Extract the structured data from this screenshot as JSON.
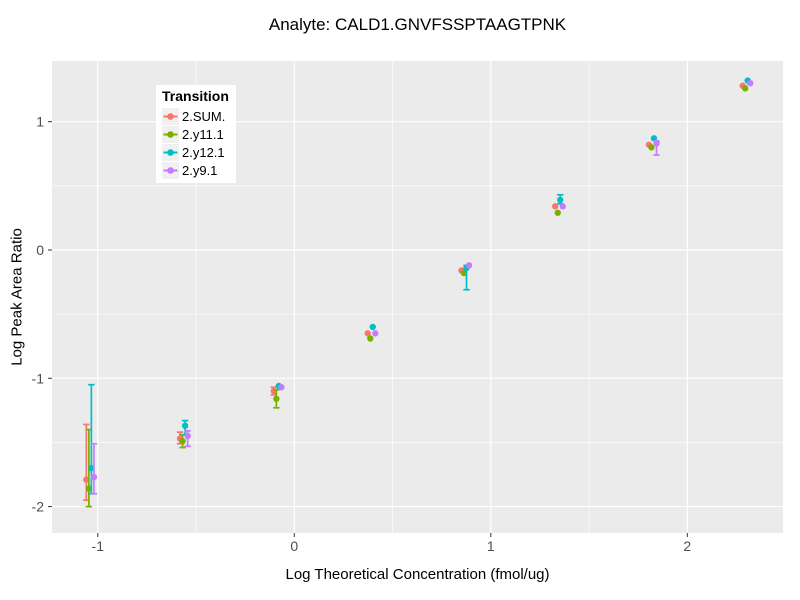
{
  "title": "Analyte: CALD1.GNVFSSPTAAGTPNK",
  "chart_data": {
    "type": "scatter",
    "variant": "pointrange-errorbar",
    "title": "Analyte: CALD1.GNVFSSPTAAGTPNK",
    "xlabel": "Log Theoretical Concentration (fmol/ug)",
    "ylabel": "Log Peak Area Ratio",
    "legend_title": "Transition",
    "legend_position": "inside-top-left",
    "grid": "on",
    "panel_bg": "#EBEBEB",
    "grid_color": "#FFFFFF",
    "tick_label_color": "#4D4D4D",
    "tick_mark_color": "#333333",
    "xlim": [
      -1.233,
      2.487
    ],
    "ylim": [
      -2.206,
      1.473
    ],
    "x_ticks": [
      -1,
      0,
      1,
      2
    ],
    "y_ticks": [
      -2,
      -1,
      0,
      1
    ],
    "x_minor": [
      -0.5,
      0.5,
      1.5
    ],
    "y_minor": [
      -1.5,
      -0.5,
      0.5
    ],
    "x": [
      -1.039,
      -0.562,
      -0.085,
      0.393,
      0.87,
      1.347,
      1.824,
      2.301
    ],
    "series": [
      {
        "name": "2.SUM.",
        "color": "#F8766D",
        "points": [
          {
            "y": -1.79,
            "lo": -1.95,
            "hi": -1.36
          },
          {
            "y": -1.47,
            "lo": -1.51,
            "hi": -1.42
          },
          {
            "y": -1.1,
            "lo": -1.13,
            "hi": -1.07
          },
          {
            "y": -0.65,
            "lo": -0.65,
            "hi": -0.65
          },
          {
            "y": -0.16,
            "lo": -0.16,
            "hi": -0.16
          },
          {
            "y": 0.34,
            "lo": 0.34,
            "hi": 0.34
          },
          {
            "y": 0.82,
            "lo": 0.82,
            "hi": 0.82
          },
          {
            "y": 1.28,
            "lo": 1.28,
            "hi": 1.28
          }
        ]
      },
      {
        "name": "2.y11.1",
        "color": "#7CAE00",
        "points": [
          {
            "y": -1.86,
            "lo": -2.0,
            "hi": -1.4
          },
          {
            "y": -1.49,
            "lo": -1.54,
            "hi": -1.44
          },
          {
            "y": -1.16,
            "lo": -1.23,
            "hi": -1.09
          },
          {
            "y": -0.69,
            "lo": -0.69,
            "hi": -0.69
          },
          {
            "y": -0.18,
            "lo": -0.18,
            "hi": -0.18
          },
          {
            "y": 0.29,
            "lo": 0.29,
            "hi": 0.29
          },
          {
            "y": 0.8,
            "lo": 0.8,
            "hi": 0.8
          },
          {
            "y": 1.26,
            "lo": 1.26,
            "hi": 1.26
          }
        ]
      },
      {
        "name": "2.y12.1",
        "color": "#00BFC4",
        "points": [
          {
            "y": -1.7,
            "lo": -1.9,
            "hi": -1.05
          },
          {
            "y": -1.37,
            "lo": -1.44,
            "hi": -1.33
          },
          {
            "y": -1.06,
            "lo": -1.06,
            "hi": -1.06
          },
          {
            "y": -0.6,
            "lo": -0.6,
            "hi": -0.6
          },
          {
            "y": -0.14,
            "lo": -0.31,
            "hi": -0.12
          },
          {
            "y": 0.39,
            "lo": 0.36,
            "hi": 0.43
          },
          {
            "y": 0.87,
            "lo": 0.87,
            "hi": 0.87
          },
          {
            "y": 1.32,
            "lo": 1.32,
            "hi": 1.32
          }
        ]
      },
      {
        "name": "2.y9.1",
        "color": "#C77CFF",
        "points": [
          {
            "y": -1.77,
            "lo": -1.9,
            "hi": -1.51
          },
          {
            "y": -1.45,
            "lo": -1.53,
            "hi": -1.41
          },
          {
            "y": -1.07,
            "lo": -1.07,
            "hi": -1.07
          },
          {
            "y": -0.65,
            "lo": -0.65,
            "hi": -0.65
          },
          {
            "y": -0.12,
            "lo": -0.12,
            "hi": -0.12
          },
          {
            "y": 0.34,
            "lo": 0.34,
            "hi": 0.34
          },
          {
            "y": 0.83,
            "lo": 0.74,
            "hi": 0.85
          },
          {
            "y": 1.3,
            "lo": 1.3,
            "hi": 1.3
          }
        ]
      }
    ]
  }
}
